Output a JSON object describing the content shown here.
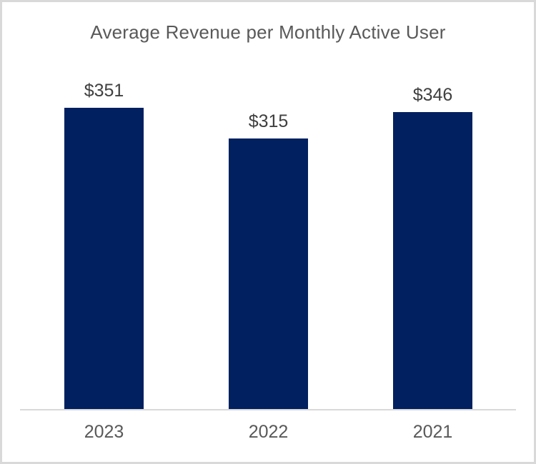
{
  "chart_data": {
    "type": "bar",
    "title": "Average Revenue per Monthly Active User",
    "categories": [
      "2023",
      "2022",
      "2021"
    ],
    "values": [
      351,
      315,
      346
    ],
    "data_labels": [
      "$351",
      "$315",
      "$346"
    ],
    "xlabel": "",
    "ylabel": "",
    "ylim": [
      0,
      360
    ],
    "grid": false,
    "legend": false,
    "baseline": 0,
    "colors": {
      "bar": "#002060",
      "axis_line": "#d9d9d9",
      "title_text": "#595959",
      "data_label_text": "#404040",
      "category_label_text": "#595959",
      "frame_border": "#d9d9d9",
      "background": "#ffffff"
    }
  }
}
